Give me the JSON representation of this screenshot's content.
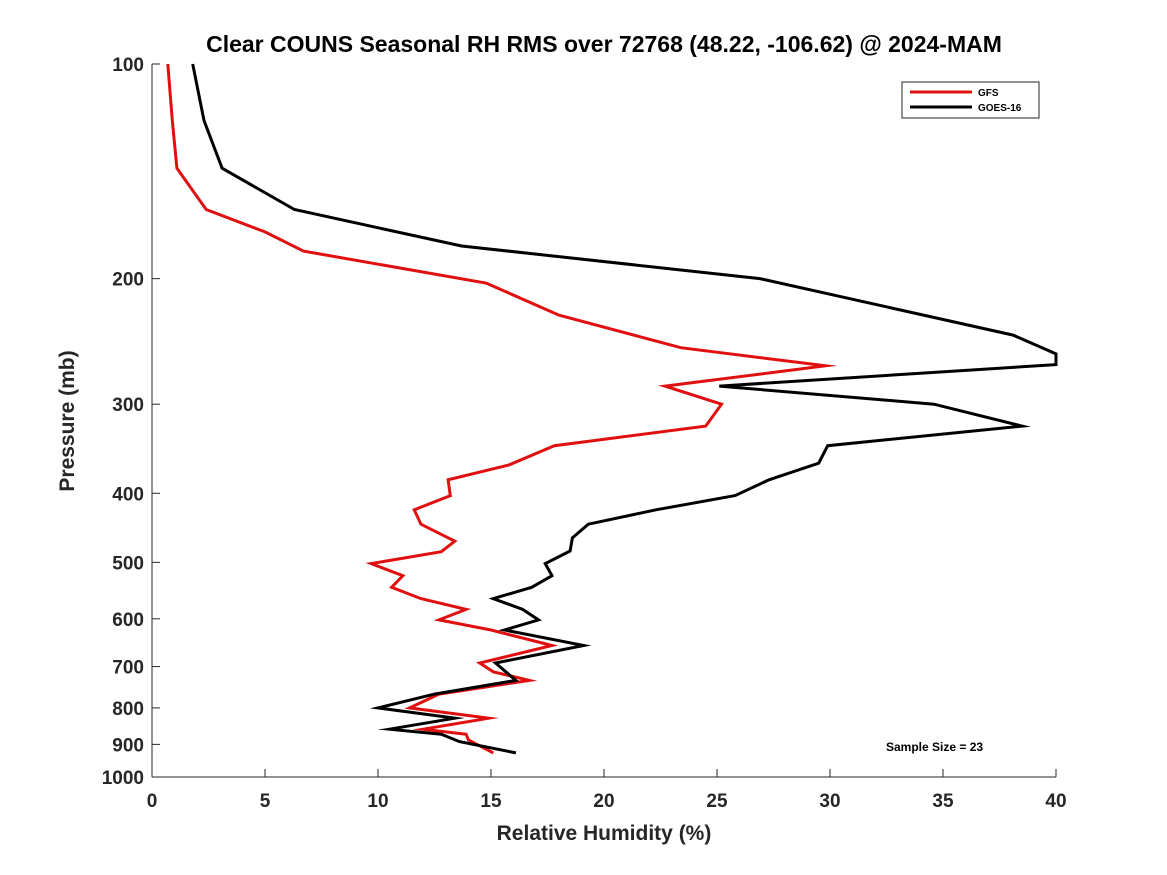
{
  "chart_data": {
    "type": "line",
    "title": "Clear COUNS Seasonal RH RMS over 72768 (48.22, -106.62) @ 2024-MAM",
    "xlabel": "Relative Humidity (%)",
    "ylabel": "Pressure (mb)",
    "xlim": [
      0,
      40
    ],
    "ylim": [
      100,
      1000
    ],
    "yscale": "log",
    "y_reversed": true,
    "xticks": [
      "0",
      "5",
      "10",
      "15",
      "20",
      "25",
      "30",
      "35",
      "40"
    ],
    "xtick_values": [
      0,
      5,
      10,
      15,
      20,
      25,
      30,
      35,
      40
    ],
    "yticks": [
      "100",
      "200",
      "300",
      "400",
      "500",
      "600",
      "700",
      "800",
      "900",
      "1000"
    ],
    "ytick_values": [
      100,
      200,
      300,
      400,
      500,
      600,
      700,
      800,
      900,
      1000
    ],
    "legend_position": "top-right",
    "annotation": "Sample Size = 23",
    "series": [
      {
        "name": "GFS",
        "color": "#e01010",
        "x": [
          0.7,
          0.9,
          1.1,
          2.4,
          5.0,
          6.7,
          14.8,
          18.0,
          23.4,
          29.8,
          22.7,
          25.2,
          24.5,
          17.8,
          15.8,
          13.1,
          13.2,
          11.6,
          11.9,
          13.4,
          12.8,
          9.7,
          11.1,
          10.6,
          11.9,
          13.9,
          12.7,
          15.0,
          17.7,
          14.5,
          15.1,
          16.7,
          12.7,
          11.4,
          14.9,
          12.0,
          13.9,
          14.0,
          15.1
        ],
        "y": [
          100,
          120,
          140,
          160,
          172,
          183,
          203,
          225,
          250,
          265,
          283,
          300,
          322,
          343,
          365,
          383,
          403,
          422,
          442,
          467,
          483,
          502,
          522,
          542,
          562,
          582,
          602,
          622,
          654,
          692,
          712,
          732,
          765,
          800,
          827,
          857,
          871,
          887,
          925
        ]
      },
      {
        "name": "GOES-16",
        "color": "#000000",
        "x": [
          1.8,
          2.3,
          3.1,
          6.3,
          13.7,
          26.9,
          38.1,
          40.0,
          40.0,
          25.1,
          34.6,
          38.5,
          29.9,
          29.5,
          27.3,
          25.8,
          22.3,
          19.3,
          18.6,
          18.5,
          17.4,
          17.7,
          16.8,
          15.1,
          16.4,
          17.1,
          15.6,
          19.1,
          15.2,
          16.1,
          12.5,
          10.0,
          13.4,
          10.5,
          12.8,
          13.6,
          16.1
        ],
        "y": [
          100,
          120,
          140,
          160,
          180,
          200,
          240,
          255,
          264,
          283,
          300,
          322,
          343,
          363,
          383,
          403,
          422,
          442,
          462,
          482,
          502,
          522,
          542,
          562,
          582,
          602,
          622,
          654,
          692,
          732,
          765,
          800,
          827,
          857,
          871,
          892,
          925
        ]
      }
    ]
  }
}
